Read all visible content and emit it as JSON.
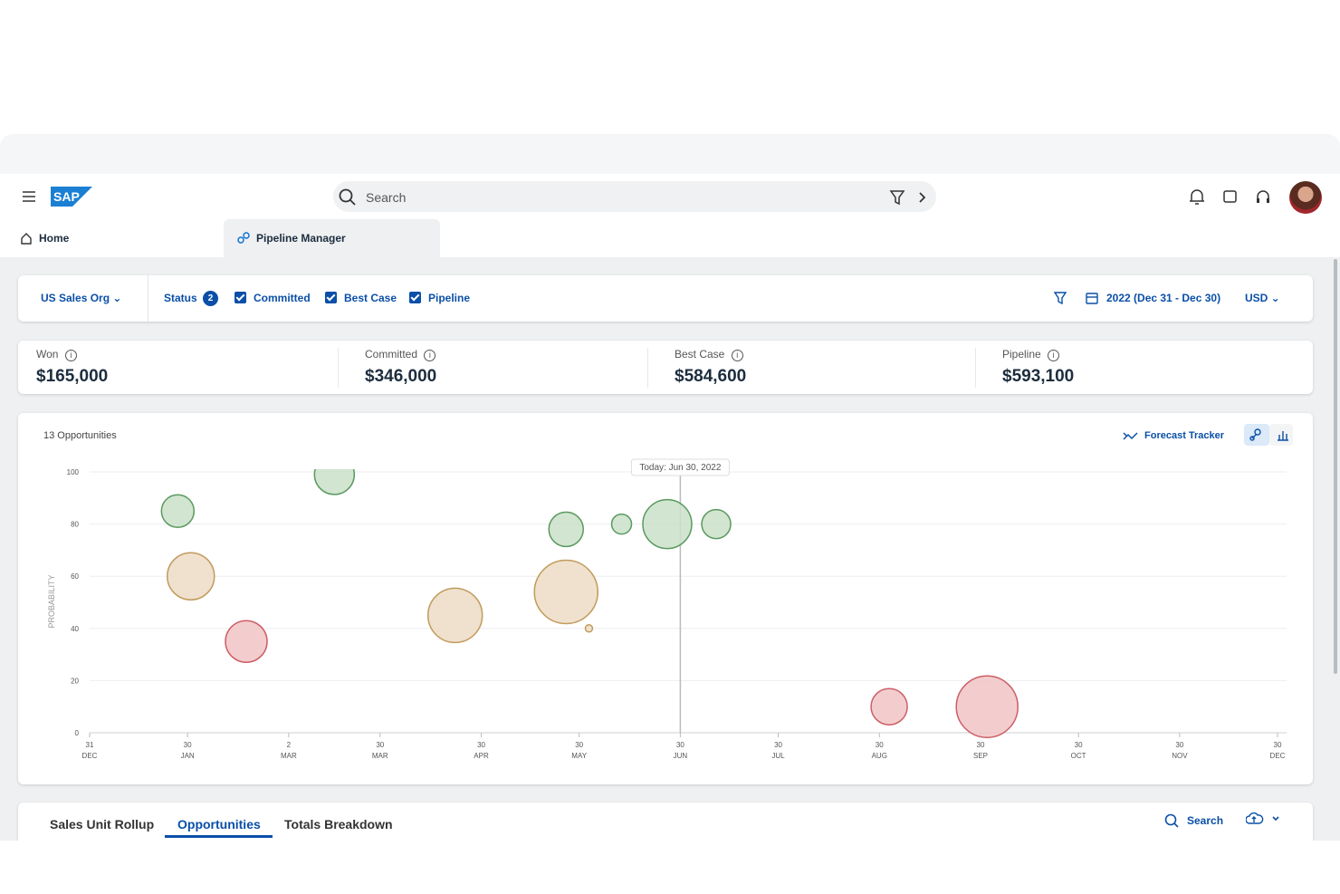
{
  "header": {
    "search": "Search"
  },
  "tabs": [
    "Home",
    "Pipeline Manager"
  ],
  "filters": {
    "org": "US Sales Org",
    "status": "Status",
    "status_count": "2",
    "checks": [
      "Committed",
      "Best Case",
      "Pipeline"
    ],
    "period": "2022 (Dec 31 - Dec 30)",
    "currency": "USD"
  },
  "kpis": [
    {
      "label": "Won",
      "value": "$165,000"
    },
    {
      "label": "Committed",
      "value": "$346,000"
    },
    {
      "label": "Best Case",
      "value": "$584,600"
    },
    {
      "label": "Pipeline",
      "value": "$593,100"
    }
  ],
  "chart_data": {
    "type": "bubble",
    "title": "13 Opportunities",
    "action": "Forecast Tracker",
    "y_label": "PROBABILITY",
    "xlim": [
      0,
      364
    ],
    "xticks": [
      {
        "value": 0,
        "label": [
          "31",
          "DEC"
        ]
      },
      {
        "value": 30,
        "label": [
          "30",
          "JAN"
        ]
      },
      {
        "value": 61,
        "label": [
          "2",
          "MAR"
        ]
      },
      {
        "value": 89,
        "label": [
          "30",
          "MAR"
        ]
      },
      {
        "value": 120,
        "label": [
          "30",
          "APR"
        ]
      },
      {
        "value": 150,
        "label": [
          "30",
          "MAY"
        ]
      },
      {
        "value": 181,
        "label": [
          "30",
          "JUN"
        ]
      },
      {
        "value": 211,
        "label": [
          "30",
          "JUL"
        ]
      },
      {
        "value": 242,
        "label": [
          "30",
          "AUG"
        ]
      },
      {
        "value": 273,
        "label": [
          "30",
          "SEP"
        ]
      },
      {
        "value": 303,
        "label": [
          "30",
          "OCT"
        ]
      },
      {
        "value": 334,
        "label": [
          "30",
          "NOV"
        ]
      },
      {
        "value": 364,
        "label": [
          "30",
          "DEC"
        ]
      }
    ],
    "ylim": [
      0,
      100
    ],
    "yticks": [
      0,
      20,
      40,
      60,
      80,
      100
    ],
    "grid": true,
    "today": {
      "x": 181,
      "label": "Today: Jun 30, 2022"
    },
    "series": [
      {
        "color": "#5b9a5f",
        "fill": "#c9e0c9",
        "x": [
          27,
          75,
          146,
          163,
          177,
          192
        ],
        "values": [
          85,
          99,
          78,
          80,
          80,
          80
        ],
        "sizes": [
          324,
          484,
          361,
          121,
          729,
          256
        ]
      },
      {
        "color": "#c29a5c",
        "fill": "#ecdcc4",
        "x": [
          31,
          112,
          146,
          153
        ],
        "values": [
          60,
          45,
          54,
          40
        ],
        "sizes": [
          676,
          900,
          1225,
          16
        ]
      },
      {
        "color": "#cc5f66",
        "fill": "#f1c4c6",
        "x": [
          48,
          245,
          275
        ],
        "values": [
          35,
          10,
          10
        ],
        "sizes": [
          529,
          400,
          1156
        ]
      }
    ]
  },
  "bottom_tabs": [
    "Sales Unit Rollup",
    "Opportunities",
    "Totals Breakdown"
  ],
  "bottom_search": "Search"
}
